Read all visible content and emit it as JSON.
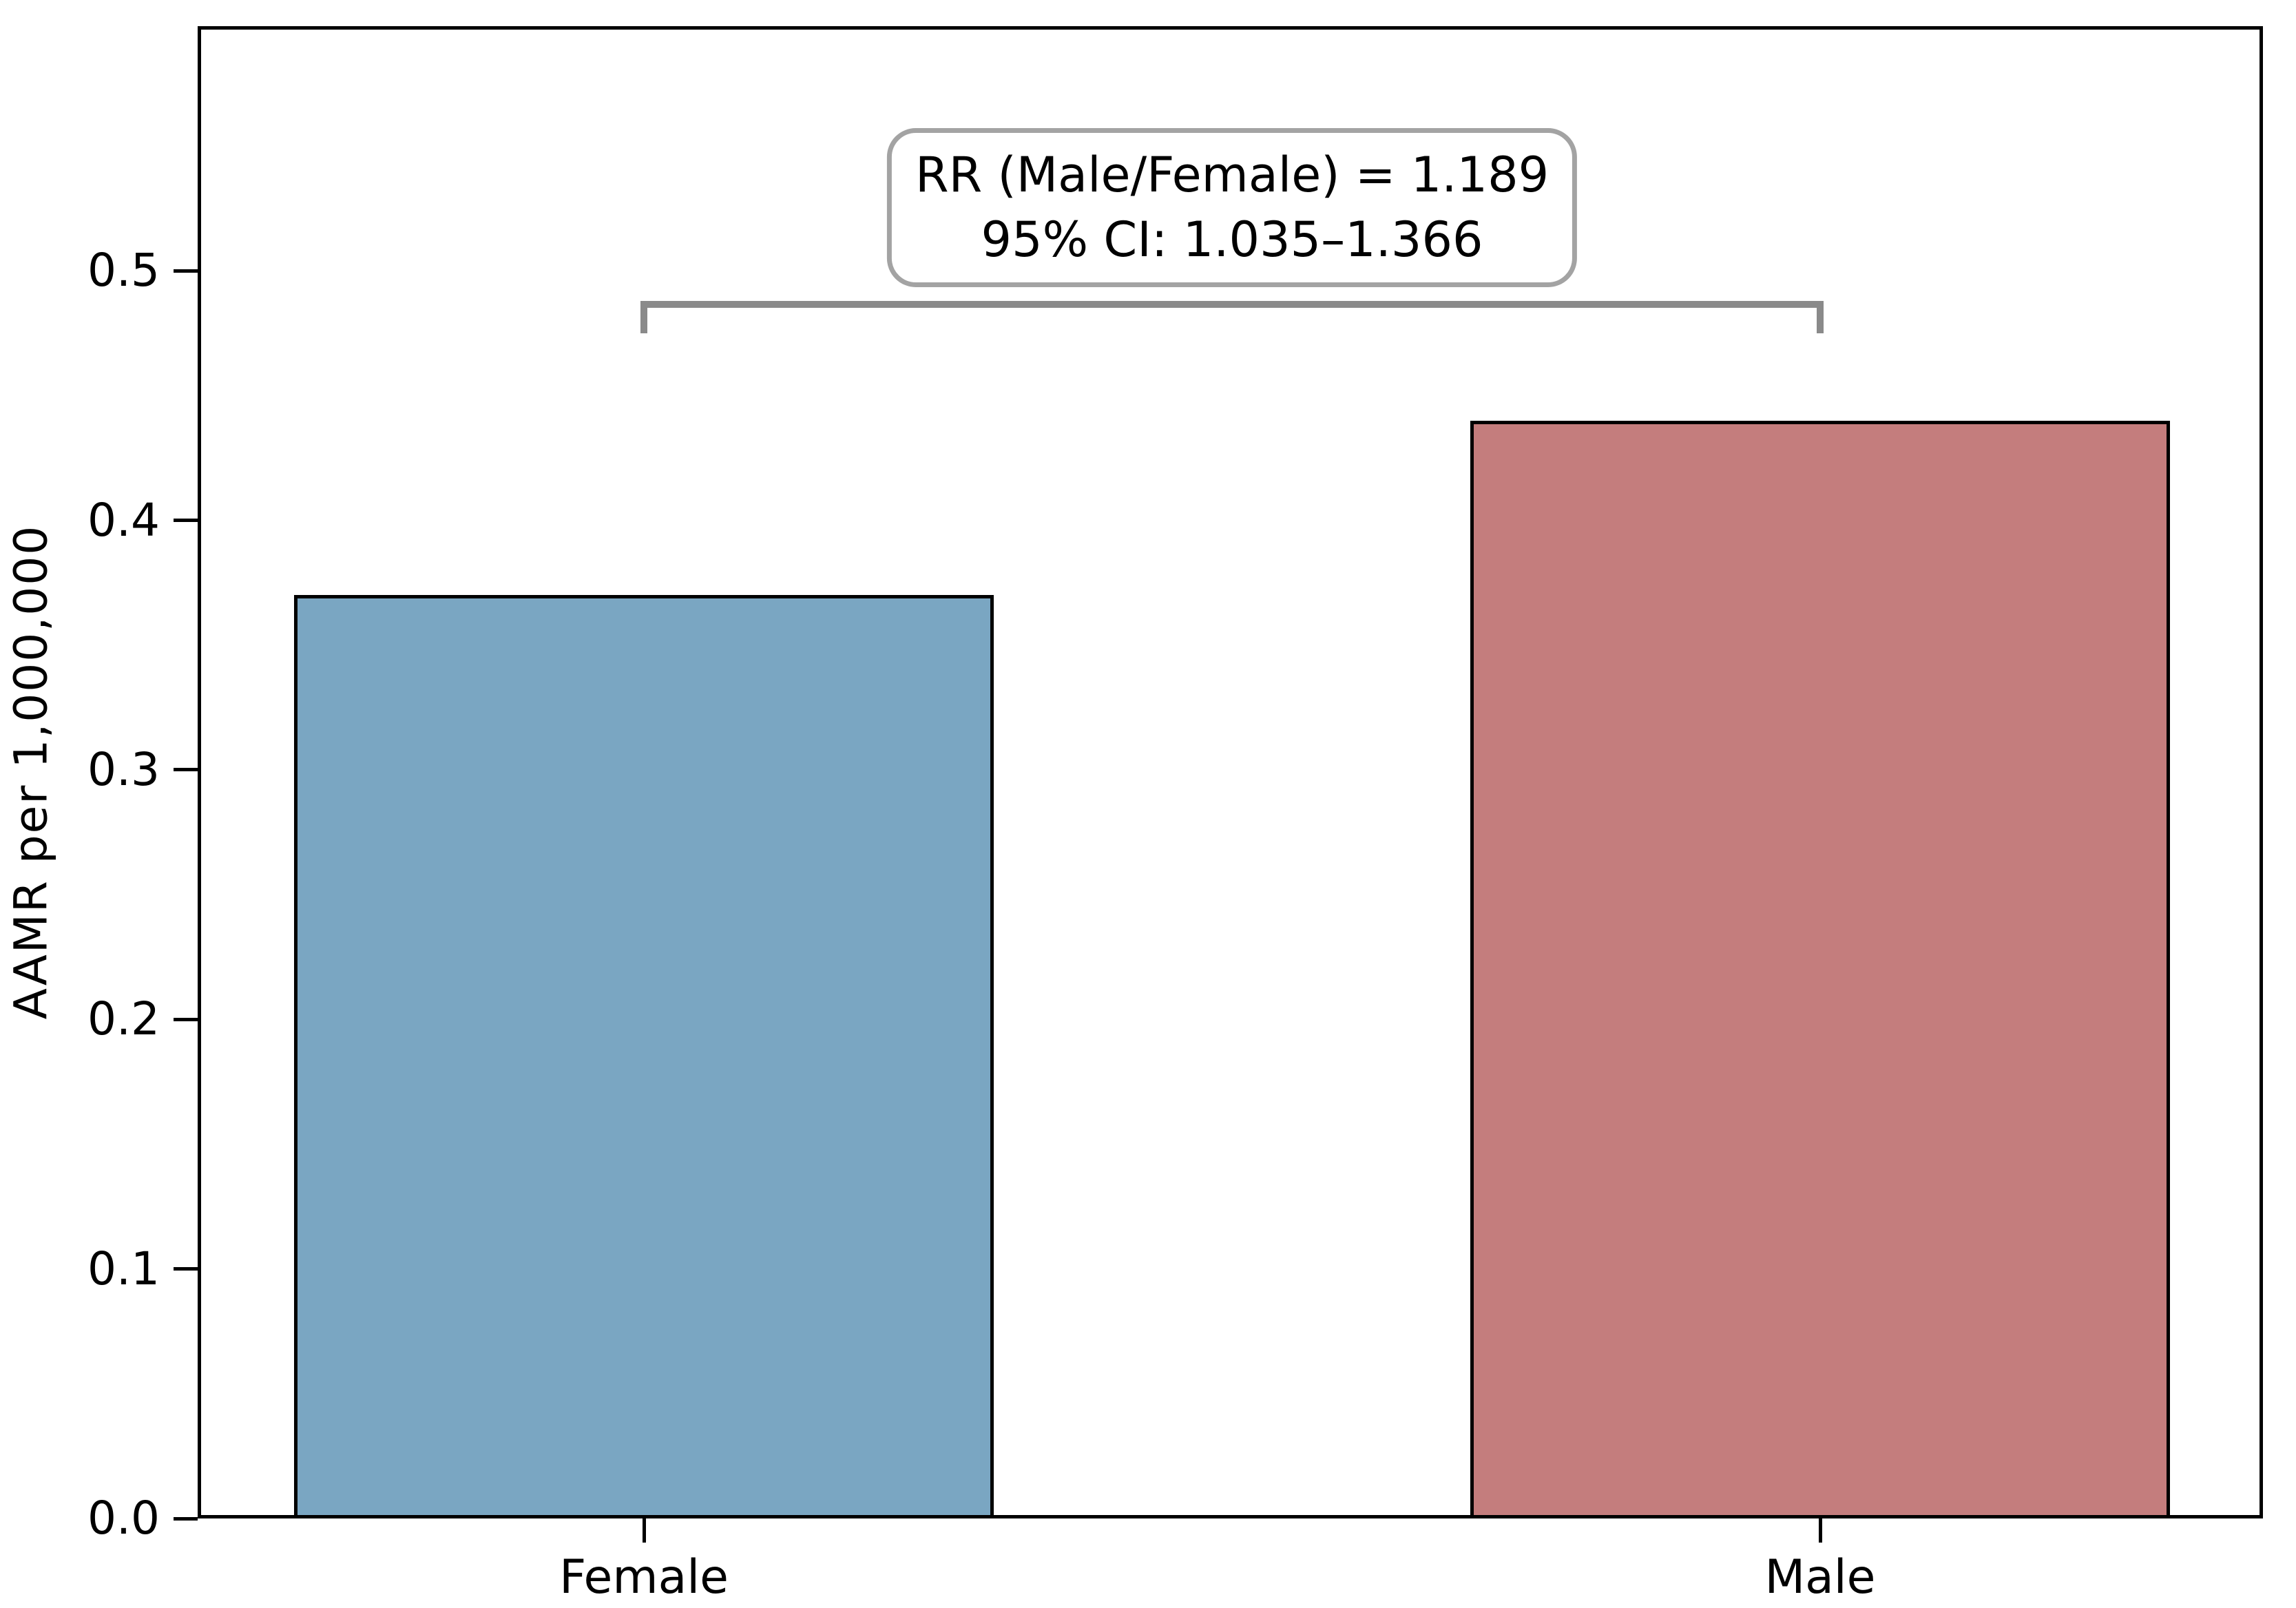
{
  "chart_data": {
    "type": "bar",
    "title": "",
    "xlabel": "",
    "ylabel": "AAMR per 1,000,000",
    "categories": [
      "Female",
      "Male"
    ],
    "values": [
      0.37,
      0.44
    ],
    "bar_colors": [
      "#7aa6c2",
      "#c47d7d"
    ],
    "bar_edge_color": "#000000",
    "yticks": [
      0.0,
      0.1,
      0.2,
      0.3,
      0.4,
      0.5
    ],
    "ytick_labels": [
      "0.0",
      "0.1",
      "0.2",
      "0.3",
      "0.4",
      "0.5"
    ],
    "ylim": [
      0,
      0.598
    ],
    "grid": false,
    "legend": false,
    "bracket": {
      "y": 0.488,
      "tick_drop": 0.013,
      "color": "#8a8a8a",
      "from_category": "Female",
      "to_category": "Male"
    },
    "annotation": {
      "line1": "RR (Male/Female) = 1.189",
      "line2": "95% CI: 1.035–1.366"
    }
  }
}
